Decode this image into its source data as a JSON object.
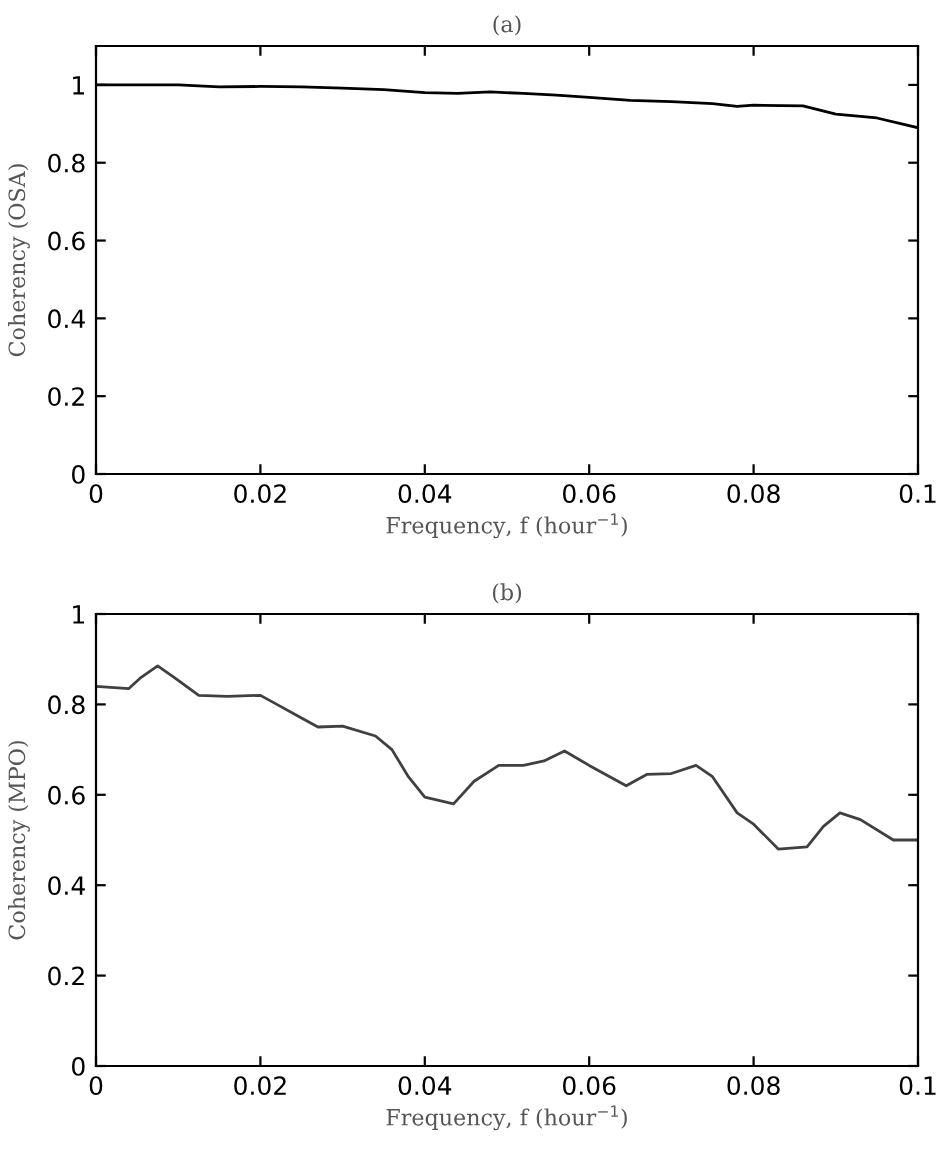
{
  "chart_data": [
    {
      "type": "line",
      "title": "(a)",
      "xlabel": "Frequency, f (hour$^{−1}$)",
      "ylabel": "Coherency (OSA)",
      "xlim": [
        0,
        0.1
      ],
      "ylim": [
        0,
        1.1
      ],
      "xticks": [
        0,
        0.02,
        0.04,
        0.06,
        0.08,
        0.1
      ],
      "yticks": [
        0,
        0.2,
        0.4,
        0.6,
        0.8,
        1
      ],
      "grid": false,
      "legend": false,
      "x": [
        0,
        0.01,
        0.015,
        0.02,
        0.025,
        0.03,
        0.035,
        0.04,
        0.044,
        0.048,
        0.052,
        0.056,
        0.06,
        0.065,
        0.07,
        0.075,
        0.078,
        0.08,
        0.086,
        0.09,
        0.095,
        0.1
      ],
      "series": [
        {
          "color": "#000000",
          "values": [
            1.0,
            1.0,
            0.995,
            0.996,
            0.995,
            0.992,
            0.988,
            0.98,
            0.978,
            0.982,
            0.978,
            0.974,
            0.968,
            0.96,
            0.957,
            0.952,
            0.945,
            0.948,
            0.946,
            0.925,
            0.915,
            0.89
          ]
        }
      ]
    },
    {
      "type": "line",
      "title": "(b)",
      "xlabel": "Frequency, f (hour$^{−1}$)",
      "ylabel": "Coherency (MPO)",
      "xlim": [
        0,
        0.1
      ],
      "ylim": [
        0,
        1
      ],
      "xticks": [
        0,
        0.02,
        0.04,
        0.06,
        0.08,
        0.1
      ],
      "yticks": [
        0,
        0.2,
        0.4,
        0.6,
        0.8,
        1
      ],
      "grid": false,
      "legend": false,
      "x": [
        0,
        0.004,
        0.0055,
        0.0075,
        0.0095,
        0.0125,
        0.016,
        0.02,
        0.022,
        0.025,
        0.027,
        0.03,
        0.034,
        0.036,
        0.038,
        0.04,
        0.0435,
        0.046,
        0.049,
        0.052,
        0.0545,
        0.057,
        0.06,
        0.0645,
        0.067,
        0.07,
        0.073,
        0.075,
        0.078,
        0.08,
        0.083,
        0.0865,
        0.0885,
        0.0905,
        0.093,
        0.097,
        0.1
      ],
      "series": [
        {
          "color": "#404040",
          "values": [
            0.84,
            0.835,
            0.86,
            0.885,
            0.86,
            0.82,
            0.818,
            0.82,
            0.8,
            0.77,
            0.75,
            0.752,
            0.73,
            0.7,
            0.64,
            0.595,
            0.58,
            0.63,
            0.665,
            0.665,
            0.675,
            0.697,
            0.665,
            0.62,
            0.645,
            0.647,
            0.665,
            0.64,
            0.56,
            0.535,
            0.48,
            0.485,
            0.53,
            0.56,
            0.545,
            0.5,
            0.5
          ]
        }
      ]
    }
  ]
}
